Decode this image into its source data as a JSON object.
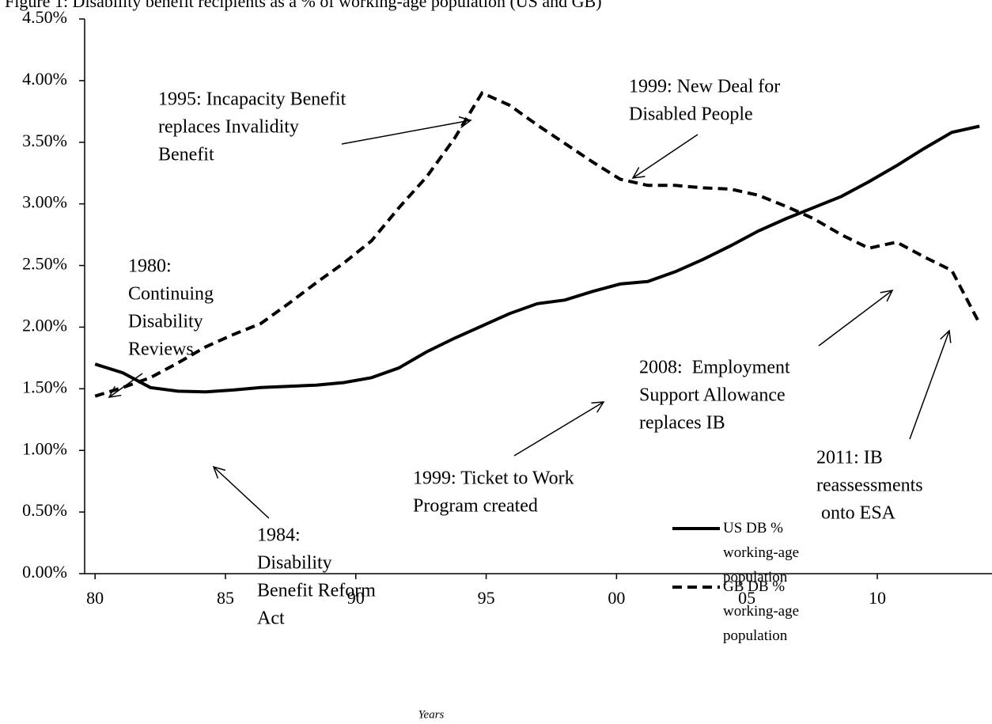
{
  "chart_data": {
    "type": "line",
    "title": "Figure 1: Disability benefit recipients as a % of working-age population (US and GB)",
    "x_label": "Years",
    "x": [
      1980.0,
      1981.06,
      1982.12,
      1983.18,
      1984.24,
      1985.3,
      1986.36,
      1987.42,
      1988.48,
      1989.54,
      1990.6,
      1991.66,
      1992.72,
      1993.78,
      1994.84,
      1995.9,
      1996.96,
      1998.02,
      1999.08,
      2000.14,
      2001.2,
      2002.26,
      2003.32,
      2004.38,
      2005.44,
      2006.5,
      2007.56,
      2008.62,
      2009.68,
      2010.74,
      2011.8,
      2012.86,
      2013.92
    ],
    "series": [
      {
        "name": "US DB % working-age population",
        "color": "#000000",
        "style": "solid",
        "values": [
          1.7,
          1.63,
          1.51,
          1.48,
          1.475,
          1.49,
          1.51,
          1.52,
          1.53,
          1.55,
          1.59,
          1.67,
          1.8,
          1.91,
          2.01,
          2.11,
          2.19,
          2.22,
          2.29,
          2.35,
          2.37,
          2.45,
          2.55,
          2.66,
          2.78,
          2.88,
          2.97,
          3.06,
          3.18,
          3.31,
          3.45,
          3.58,
          3.63
        ]
      },
      {
        "name": "GB DB % working-age population",
        "color": "#000000",
        "style": "dashed",
        "values": [
          1.44,
          1.51,
          1.59,
          1.71,
          1.84,
          1.94,
          2.03,
          2.19,
          2.36,
          2.52,
          2.7,
          2.97,
          3.22,
          3.53,
          3.9,
          3.8,
          3.64,
          3.49,
          3.34,
          3.2,
          3.15,
          3.15,
          3.13,
          3.12,
          3.07,
          2.98,
          2.88,
          2.75,
          2.64,
          2.69,
          2.57,
          2.46,
          2.03
        ]
      }
    ],
    "xlim": [
      1979.6,
      2014.4
    ],
    "xticks": [
      {
        "value": 1980,
        "label": "80"
      },
      {
        "value": 1985,
        "label": "85"
      },
      {
        "value": 1990,
        "label": "90"
      },
      {
        "value": 1995,
        "label": "95"
      },
      {
        "value": 2000,
        "label": "00"
      },
      {
        "value": 2005,
        "label": "05"
      },
      {
        "value": 2010,
        "label": "10"
      }
    ],
    "ylim": [
      0,
      4.5
    ],
    "yticks": [
      {
        "value": 0,
        "label": "0.00%"
      },
      {
        "value": 0.5,
        "label": "0.50%"
      },
      {
        "value": 1,
        "label": "1.00%"
      },
      {
        "value": 1.5,
        "label": "1.50%"
      },
      {
        "value": 2,
        "label": "2.00%"
      },
      {
        "value": 2.5,
        "label": "2.50%"
      },
      {
        "value": 3,
        "label": "3.00%"
      },
      {
        "value": 3.5,
        "label": "3.50%"
      },
      {
        "value": 4,
        "label": "4.00%"
      },
      {
        "value": 4.5,
        "label": "4.50%"
      }
    ],
    "grid": false,
    "legend": "bottom-right",
    "annotations": [
      [
        "1980:",
        "Continuing",
        "Disability",
        "Reviews"
      ],
      [
        "1995: Incapacity Benefit",
        "replaces Invalidity",
        "Benefit"
      ],
      [
        "1999: New Deal for",
        "Disabled People"
      ],
      [
        "2008:  Employment",
        "Support Allowance",
        "replaces IB"
      ],
      [
        "2011: IB",
        "reassessments",
        " onto ESA"
      ],
      [
        "1999: Ticket to Work",
        "Program created"
      ],
      [
        "1984:",
        "Disability",
        "Benefit Reform",
        "Act"
      ]
    ]
  }
}
